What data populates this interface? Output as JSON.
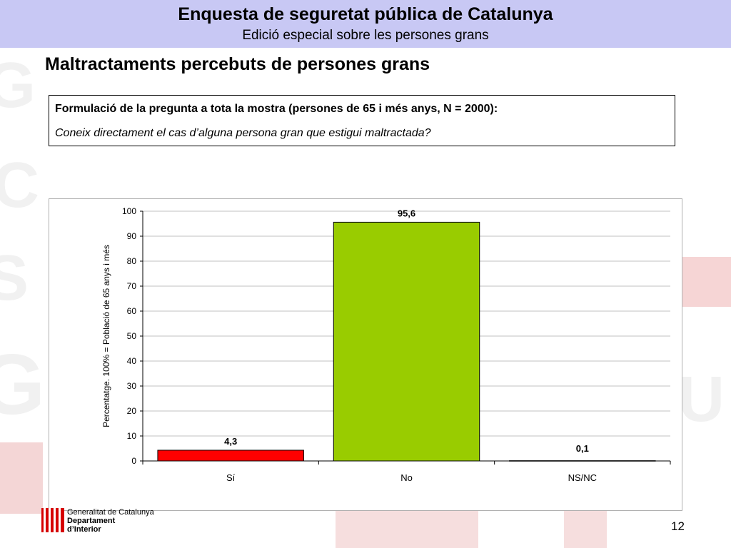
{
  "header": {
    "title": "Enquesta de seguretat pública de Catalunya",
    "subtitle": "Edició especial sobre les persones grans"
  },
  "slide": {
    "title": "Maltractaments percebuts de persones grans",
    "page_number": "12"
  },
  "question": {
    "heading": "Formulació de la pregunta a tota la mostra (persones de 65 i més anys, N = 2000):",
    "text": "Coneix directament el cas d’alguna persona gran que estigui maltractada?"
  },
  "footer": {
    "line1": "Generalitat de Catalunya",
    "line2": "Departament",
    "line3": "d’Interior"
  },
  "chart_data": {
    "type": "bar",
    "categories": [
      "Sí",
      "No",
      "NS/NC"
    ],
    "values": [
      4.3,
      95.6,
      0.1
    ],
    "value_labels": [
      "4,3",
      "95,6",
      "0,1"
    ],
    "colors": [
      "#ff0000",
      "#99cc00",
      "#c0c0c0"
    ],
    "ylabel": "Percentatge. 100% = Població de 65 anys i més",
    "xlabel": "",
    "ylim": [
      0,
      100
    ],
    "yticks": [
      0,
      10,
      20,
      30,
      40,
      50,
      60,
      70,
      80,
      90,
      100
    ],
    "grid": true,
    "legend": "none"
  }
}
